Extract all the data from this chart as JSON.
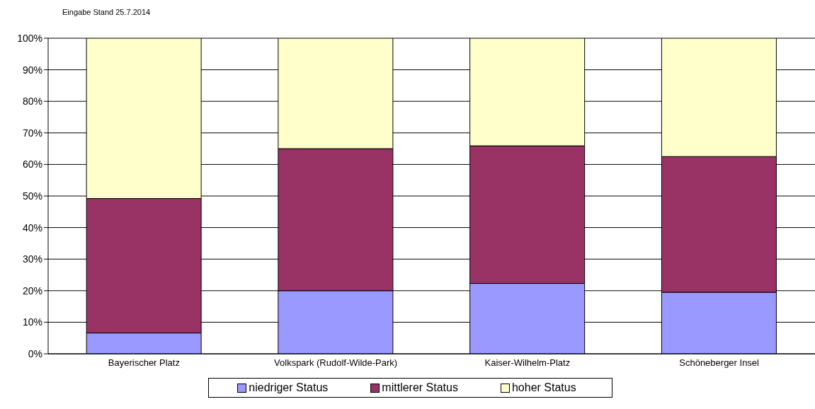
{
  "chart_data": {
    "type": "bar",
    "stacked": true,
    "annotations": [
      "Eingabe Stand 25.7.2014"
    ],
    "categories": [
      "Bayerischer Platz",
      "Volkspark (Rudolf-Wilde-Park)",
      "Kaiser-Wilhelm-Platz",
      "Schöneberger Insel"
    ],
    "series": [
      {
        "name": "niedriger Status",
        "color": "#9999ff",
        "values": [
          6.6,
          20,
          22.3,
          19.5
        ]
      },
      {
        "name": "mittlerer Status",
        "color": "#993366",
        "values": [
          42.6,
          45,
          43.6,
          43
        ]
      },
      {
        "name": "hoher Status",
        "color": "#ffffcc",
        "values": [
          50.8,
          35,
          34.1,
          37.5
        ]
      }
    ],
    "ylim": [
      0,
      100
    ],
    "yticks": [
      {
        "value": 0,
        "label": "0%"
      },
      {
        "value": 10,
        "label": "10%"
      },
      {
        "value": 20,
        "label": "20%"
      },
      {
        "value": 30,
        "label": "30%"
      },
      {
        "value": 40,
        "label": "40%"
      },
      {
        "value": 50,
        "label": "50%"
      },
      {
        "value": 60,
        "label": "60%"
      },
      {
        "value": 70,
        "label": "70%"
      },
      {
        "value": 80,
        "label": "80%"
      },
      {
        "value": 90,
        "label": "90%"
      },
      {
        "value": 100,
        "label": "100%"
      }
    ],
    "grid": "y",
    "legend": "bottom"
  }
}
